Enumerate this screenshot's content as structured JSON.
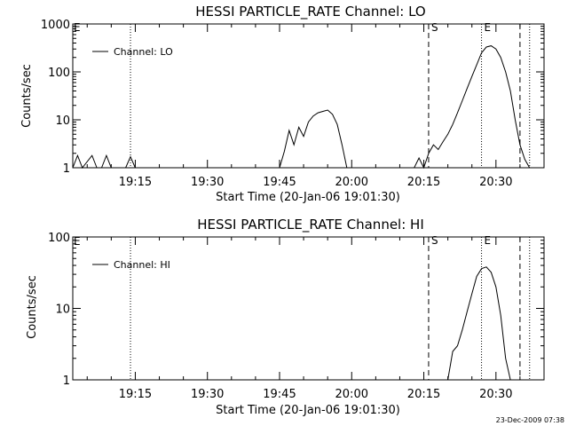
{
  "chart_data": [
    {
      "type": "line",
      "title": "HESSI PARTICLE_RATE Channel: LO",
      "xlabel": "Start Time (20-Jan-06 19:01:30)",
      "ylabel": "Counts/sec",
      "yscale": "log",
      "ylim": [
        1,
        1000
      ],
      "xlim": [
        "19:02",
        "20:40"
      ],
      "x_ticks": [
        "19:15",
        "19:30",
        "19:45",
        "20:00",
        "20:15",
        "20:30"
      ],
      "y_ticks": [
        "1",
        "10",
        "100",
        "1000"
      ],
      "legend": {
        "label": "Channel: LO",
        "placement": "top-left"
      },
      "markers": [
        {
          "type": "dotted",
          "x": "19:14",
          "label": ""
        },
        {
          "type": "dashed",
          "x": "20:16",
          "label": "S"
        },
        {
          "type": "dotted",
          "x": "20:27",
          "label": "E"
        },
        {
          "type": "dashed",
          "x": "20:35",
          "label": ""
        },
        {
          "type": "dotted",
          "x": "20:37",
          "label": ""
        }
      ],
      "corner_label": "E",
      "series": [
        {
          "name": "Channel: LO",
          "segments": [
            [
              [
                "19:02",
                1
              ],
              [
                "19:03",
                1.8
              ],
              [
                "19:04",
                1
              ],
              [
                "19:06",
                1.8
              ],
              [
                "19:07",
                1
              ]
            ],
            [
              [
                "19:08",
                1
              ],
              [
                "19:09",
                1.8
              ],
              [
                "19:10",
                1
              ]
            ],
            [
              [
                "19:13",
                1
              ],
              [
                "19:14",
                1.7
              ],
              [
                "19:15",
                1
              ]
            ],
            [
              [
                "19:45",
                1
              ],
              [
                "19:46",
                2.2
              ],
              [
                "19:47",
                6
              ],
              [
                "19:48",
                3
              ],
              [
                "19:49",
                7
              ],
              [
                "19:50",
                4.5
              ],
              [
                "19:51",
                9
              ],
              [
                "19:52",
                12
              ],
              [
                "19:53",
                14
              ],
              [
                "19:54",
                15
              ],
              [
                "19:55",
                16
              ],
              [
                "19:56",
                13
              ],
              [
                "19:57",
                8
              ],
              [
                "19:58",
                3
              ],
              [
                "19:59",
                1
              ]
            ],
            [
              [
                "20:13",
                1
              ],
              [
                "20:14",
                1.6
              ],
              [
                "20:15",
                1
              ],
              [
                "20:16",
                2
              ],
              [
                "20:17",
                3
              ],
              [
                "20:18",
                2.4
              ],
              [
                "20:19",
                3.5
              ],
              [
                "20:20",
                5
              ],
              [
                "20:21",
                8
              ],
              [
                "20:22",
                14
              ],
              [
                "20:23",
                25
              ],
              [
                "20:24",
                45
              ],
              [
                "20:25",
                80
              ],
              [
                "20:26",
                140
              ],
              [
                "20:27",
                250
              ],
              [
                "20:28",
                330
              ],
              [
                "20:29",
                350
              ],
              [
                "20:30",
                300
              ],
              [
                "20:31",
                200
              ],
              [
                "20:32",
                100
              ],
              [
                "20:33",
                40
              ],
              [
                "20:34",
                10
              ],
              [
                "20:35",
                3
              ],
              [
                "20:36",
                1.5
              ],
              [
                "20:37",
                1
              ]
            ]
          ]
        }
      ]
    },
    {
      "type": "line",
      "title": "HESSI PARTICLE_RATE Channel: HI",
      "xlabel": "Start Time (20-Jan-06 19:01:30)",
      "ylabel": "Counts/sec",
      "yscale": "log",
      "ylim": [
        1,
        100
      ],
      "xlim": [
        "19:02",
        "20:40"
      ],
      "x_ticks": [
        "19:15",
        "19:30",
        "19:45",
        "20:00",
        "20:15",
        "20:30"
      ],
      "y_ticks": [
        "1",
        "10",
        "100"
      ],
      "legend": {
        "label": "Channel: HI",
        "placement": "top-left"
      },
      "markers": [
        {
          "type": "dotted",
          "x": "19:14",
          "label": ""
        },
        {
          "type": "dashed",
          "x": "20:16",
          "label": "S"
        },
        {
          "type": "dotted",
          "x": "20:27",
          "label": "E"
        },
        {
          "type": "dashed",
          "x": "20:35",
          "label": ""
        },
        {
          "type": "dotted",
          "x": "20:37",
          "label": ""
        }
      ],
      "corner_label": "E",
      "series": [
        {
          "name": "Channel: HI",
          "segments": [
            [
              [
                "20:20",
                1
              ],
              [
                "20:21",
                2.5
              ],
              [
                "20:22",
                3
              ],
              [
                "20:23",
                5
              ],
              [
                "20:24",
                9
              ],
              [
                "20:25",
                16
              ],
              [
                "20:26",
                28
              ],
              [
                "20:27",
                36
              ],
              [
                "20:28",
                38
              ],
              [
                "20:29",
                32
              ],
              [
                "20:30",
                20
              ],
              [
                "20:31",
                8
              ],
              [
                "20:32",
                2
              ],
              [
                "20:33",
                1
              ]
            ]
          ]
        }
      ]
    }
  ],
  "timestamp": "23-Dec-2009 07:38"
}
